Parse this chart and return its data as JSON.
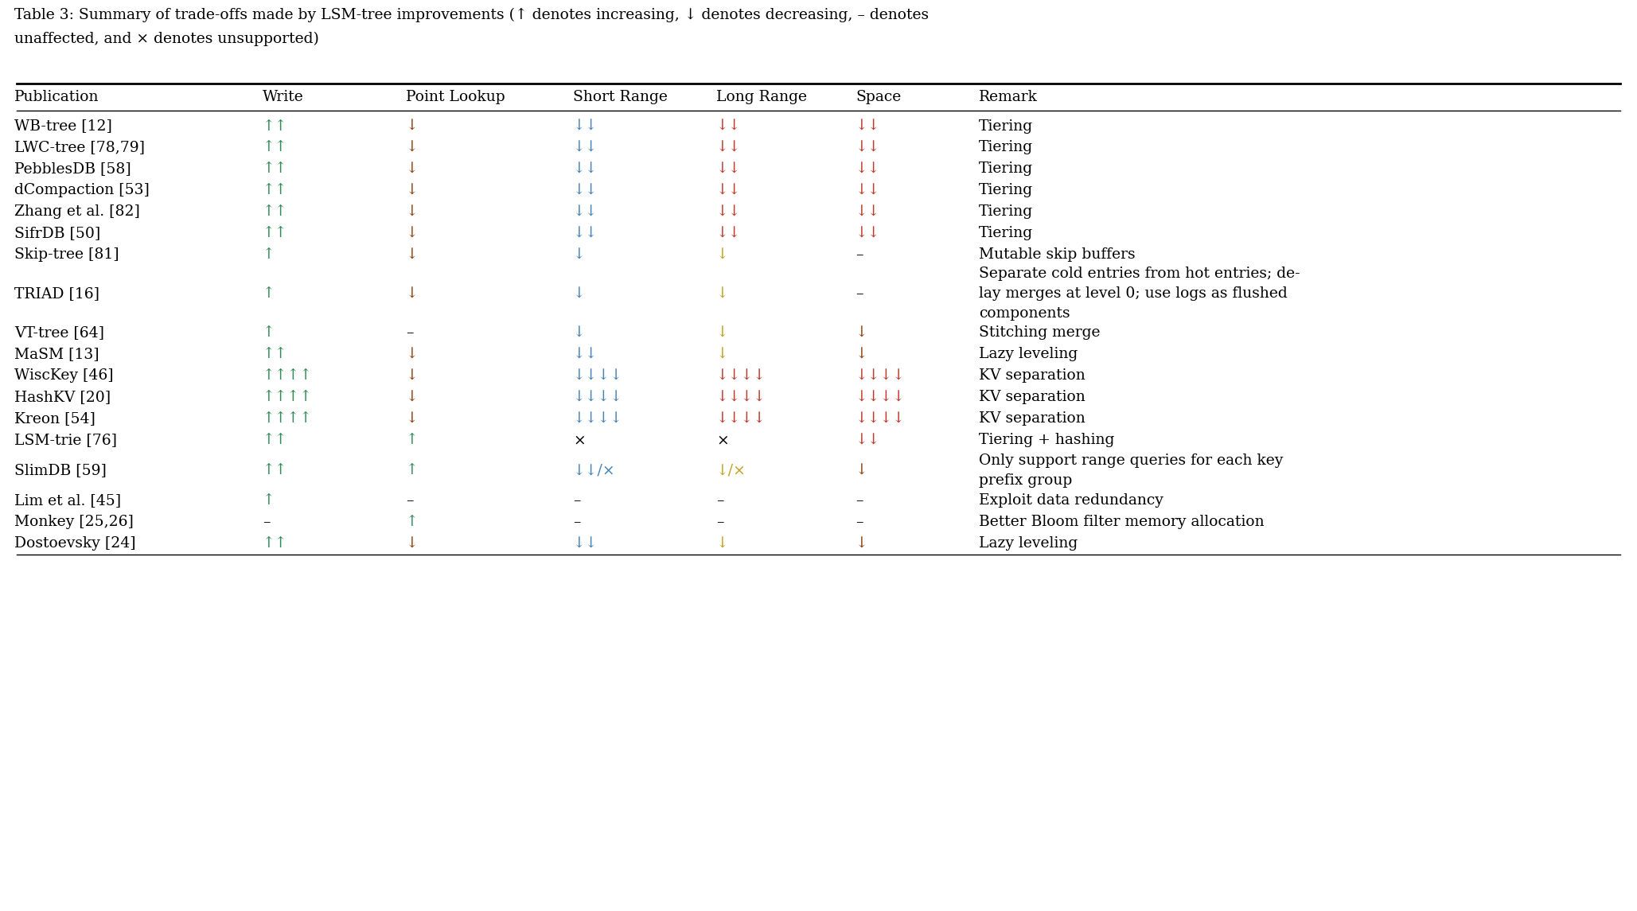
{
  "title_line1": "Table 3: Summary of trade-offs made by LSM-tree improvements (↑ denotes increasing, ↓ denotes decreasing, – denotes",
  "title_line2": "unaffected, and × denotes unsupported)",
  "columns": [
    "Publication",
    "Write",
    "Point Lookup",
    "Short Range",
    "Long Range",
    "Space",
    "Remark"
  ],
  "col_x_inches": [
    0.18,
    3.3,
    5.1,
    7.2,
    9.0,
    10.75,
    12.3
  ],
  "rows": [
    {
      "pub": "WB-tree [12]",
      "write": {
        "text": "↑↑",
        "color": "#2e8b57"
      },
      "point": {
        "text": "↓",
        "color": "#8b4513"
      },
      "short": {
        "text": "↓↓",
        "color": "#4682b4"
      },
      "long": {
        "text": "↓↓",
        "color": "#c0392b"
      },
      "space": {
        "text": "↓↓",
        "color": "#c0392b"
      },
      "remark": "Tiering",
      "nlines": 1
    },
    {
      "pub": "LWC-tree [78,79]",
      "write": {
        "text": "↑↑",
        "color": "#2e8b57"
      },
      "point": {
        "text": "↓",
        "color": "#8b4513"
      },
      "short": {
        "text": "↓↓",
        "color": "#4682b4"
      },
      "long": {
        "text": "↓↓",
        "color": "#c0392b"
      },
      "space": {
        "text": "↓↓",
        "color": "#c0392b"
      },
      "remark": "Tiering",
      "nlines": 1
    },
    {
      "pub": "PebblesDB [58]",
      "write": {
        "text": "↑↑",
        "color": "#2e8b57"
      },
      "point": {
        "text": "↓",
        "color": "#8b4513"
      },
      "short": {
        "text": "↓↓",
        "color": "#4682b4"
      },
      "long": {
        "text": "↓↓",
        "color": "#c0392b"
      },
      "space": {
        "text": "↓↓",
        "color": "#c0392b"
      },
      "remark": "Tiering",
      "nlines": 1
    },
    {
      "pub": "dCompaction [53]",
      "write": {
        "text": "↑↑",
        "color": "#2e8b57"
      },
      "point": {
        "text": "↓",
        "color": "#8b4513"
      },
      "short": {
        "text": "↓↓",
        "color": "#4682b4"
      },
      "long": {
        "text": "↓↓",
        "color": "#c0392b"
      },
      "space": {
        "text": "↓↓",
        "color": "#c0392b"
      },
      "remark": "Tiering",
      "nlines": 1
    },
    {
      "pub": "Zhang et al. [82]",
      "write": {
        "text": "↑↑",
        "color": "#2e8b57"
      },
      "point": {
        "text": "↓",
        "color": "#8b4513"
      },
      "short": {
        "text": "↓↓",
        "color": "#4682b4"
      },
      "long": {
        "text": "↓↓",
        "color": "#c0392b"
      },
      "space": {
        "text": "↓↓",
        "color": "#c0392b"
      },
      "remark": "Tiering",
      "nlines": 1
    },
    {
      "pub": "SifrDB [50]",
      "write": {
        "text": "↑↑",
        "color": "#2e8b57"
      },
      "point": {
        "text": "↓",
        "color": "#8b4513"
      },
      "short": {
        "text": "↓↓",
        "color": "#4682b4"
      },
      "long": {
        "text": "↓↓",
        "color": "#c0392b"
      },
      "space": {
        "text": "↓↓",
        "color": "#c0392b"
      },
      "remark": "Tiering",
      "nlines": 1
    },
    {
      "pub": "Skip-tree [81]",
      "write": {
        "text": "↑",
        "color": "#2e8b57"
      },
      "point": {
        "text": "↓",
        "color": "#8b4513"
      },
      "short": {
        "text": "↓",
        "color": "#4682b4"
      },
      "long": {
        "text": "↓",
        "color": "#c0a020"
      },
      "space": {
        "text": "–",
        "color": "#000000"
      },
      "remark": "Mutable skip buffers",
      "nlines": 1
    },
    {
      "pub": "TRIAD [16]",
      "write": {
        "text": "↑",
        "color": "#2e8b57"
      },
      "point": {
        "text": "↓",
        "color": "#8b4513"
      },
      "short": {
        "text": "↓",
        "color": "#4682b4"
      },
      "long": {
        "text": "↓",
        "color": "#c0a020"
      },
      "space": {
        "text": "–",
        "color": "#000000"
      },
      "remark": "Separate cold entries from hot entries; de-\nlay merges at level 0; use logs as flushed\ncomponents",
      "nlines": 3
    },
    {
      "pub": "VT-tree [64]",
      "write": {
        "text": "↑",
        "color": "#2e8b57"
      },
      "point": {
        "text": "–",
        "color": "#000000"
      },
      "short": {
        "text": "↓",
        "color": "#4682b4"
      },
      "long": {
        "text": "↓",
        "color": "#c0a020"
      },
      "space": {
        "text": "↓",
        "color": "#8b4513"
      },
      "remark": "Stitching merge",
      "nlines": 1
    },
    {
      "pub": "MaSM [13]",
      "write": {
        "text": "↑↑",
        "color": "#2e8b57"
      },
      "point": {
        "text": "↓",
        "color": "#8b4513"
      },
      "short": {
        "text": "↓↓",
        "color": "#4682b4"
      },
      "long": {
        "text": "↓",
        "color": "#c0a020"
      },
      "space": {
        "text": "↓",
        "color": "#8b4513"
      },
      "remark": "Lazy leveling",
      "nlines": 1
    },
    {
      "pub": "WiscKey [46]",
      "write": {
        "text": "↑↑↑↑",
        "color": "#2e8b57"
      },
      "point": {
        "text": "↓",
        "color": "#8b4513"
      },
      "short": {
        "text": "↓↓↓↓",
        "color": "#4682b4"
      },
      "long": {
        "text": "↓↓↓↓",
        "color": "#c0392b"
      },
      "space": {
        "text": "↓↓↓↓",
        "color": "#c0392b"
      },
      "remark": "KV separation",
      "nlines": 1
    },
    {
      "pub": "HashKV [20]",
      "write": {
        "text": "↑↑↑↑",
        "color": "#2e8b57"
      },
      "point": {
        "text": "↓",
        "color": "#8b4513"
      },
      "short": {
        "text": "↓↓↓↓",
        "color": "#4682b4"
      },
      "long": {
        "text": "↓↓↓↓",
        "color": "#c0392b"
      },
      "space": {
        "text": "↓↓↓↓",
        "color": "#c0392b"
      },
      "remark": "KV separation",
      "nlines": 1
    },
    {
      "pub": "Kreon [54]",
      "write": {
        "text": "↑↑↑↑",
        "color": "#2e8b57"
      },
      "point": {
        "text": "↓",
        "color": "#8b4513"
      },
      "short": {
        "text": "↓↓↓↓",
        "color": "#4682b4"
      },
      "long": {
        "text": "↓↓↓↓",
        "color": "#c0392b"
      },
      "space": {
        "text": "↓↓↓↓",
        "color": "#c0392b"
      },
      "remark": "KV separation",
      "nlines": 1
    },
    {
      "pub": "LSM-trie [76]",
      "write": {
        "text": "↑↑",
        "color": "#2e8b57"
      },
      "point": {
        "text": "↑",
        "color": "#2e8b57"
      },
      "short": {
        "text": "×",
        "color": "#000000"
      },
      "long": {
        "text": "×",
        "color": "#000000"
      },
      "space": {
        "text": "↓↓",
        "color": "#c0392b"
      },
      "remark": "Tiering + hashing",
      "nlines": 1
    },
    {
      "pub": "SlimDB [59]",
      "write": {
        "text": "↑↑",
        "color": "#2e8b57"
      },
      "point": {
        "text": "↑",
        "color": "#2e8b57"
      },
      "short": {
        "text": "↓↓/×",
        "color": "#4682b4"
      },
      "long": {
        "text": "↓/×",
        "color": "#c0a020"
      },
      "space": {
        "text": "↓",
        "color": "#8b4513"
      },
      "remark": "Only support range queries for each key\nprefix group",
      "nlines": 2
    },
    {
      "pub": "Lim et al. [45]",
      "write": {
        "text": "↑",
        "color": "#2e8b57"
      },
      "point": {
        "text": "–",
        "color": "#000000"
      },
      "short": {
        "text": "–",
        "color": "#000000"
      },
      "long": {
        "text": "–",
        "color": "#000000"
      },
      "space": {
        "text": "–",
        "color": "#000000"
      },
      "remark": "Exploit data redundancy",
      "nlines": 1
    },
    {
      "pub": "Monkey [25,26]",
      "write": {
        "text": "–",
        "color": "#000000"
      },
      "point": {
        "text": "↑",
        "color": "#2e8b57"
      },
      "short": {
        "text": "–",
        "color": "#000000"
      },
      "long": {
        "text": "–",
        "color": "#000000"
      },
      "space": {
        "text": "–",
        "color": "#000000"
      },
      "remark": "Better Bloom filter memory allocation",
      "nlines": 1
    },
    {
      "pub": "Dostoevsky [24]",
      "write": {
        "text": "↑↑",
        "color": "#2e8b57"
      },
      "point": {
        "text": "↓",
        "color": "#8b4513"
      },
      "short": {
        "text": "↓↓",
        "color": "#4682b4"
      },
      "long": {
        "text": "↓",
        "color": "#c0a020"
      },
      "space": {
        "text": "↓",
        "color": "#8b4513"
      },
      "remark": "Lazy leveling",
      "nlines": 1
    }
  ],
  "fig_width": 20.57,
  "fig_height": 11.45,
  "dpi": 100,
  "bg_color": "#ffffff",
  "text_color": "#000000"
}
